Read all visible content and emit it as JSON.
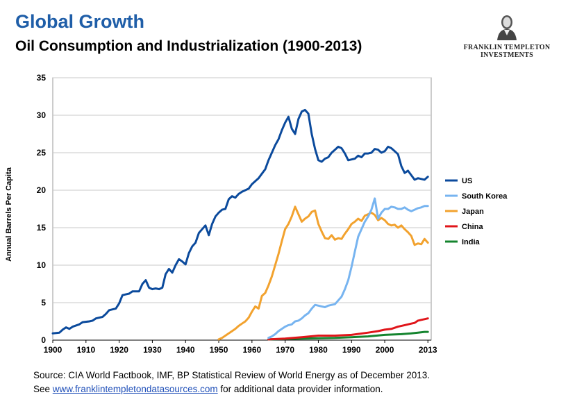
{
  "header": {
    "title": "Global Growth",
    "subtitle": "Oil Consumption and Industrialization (1900-2013)"
  },
  "logo": {
    "line1": "FRANKLIN TEMPLETON",
    "line2": "INVESTMENTS",
    "icon": "portrait-icon"
  },
  "footer": {
    "source": "Source: CIA World Factbook, IMF, BP Statistical  Review of World Energy as of December 2013.",
    "see_prefix": "See ",
    "link": "www.franklintempletondatasources.com",
    "see_suffix": " for additional data provider information."
  },
  "chart_data": {
    "type": "line",
    "title": "Oil Consumption and Industrialization (1900-2013)",
    "ylabel": "Annual Barrels Per Capita",
    "xlabel": "",
    "xlim": [
      1900,
      2014
    ],
    "ylim": [
      0,
      35
    ],
    "x_ticks": [
      "1900",
      "1910",
      "1920",
      "1930",
      "1940",
      "1950",
      "1960",
      "1970",
      "1980",
      "1990",
      "2000",
      "2013"
    ],
    "x_tick_values": [
      1900,
      1910,
      1920,
      1930,
      1940,
      1950,
      1960,
      1970,
      1980,
      1990,
      2000,
      2013
    ],
    "y_ticks": [
      0,
      5,
      10,
      15,
      20,
      25,
      30,
      35
    ],
    "grid": "horizontal",
    "legend_position": "right",
    "series": [
      {
        "name": "US",
        "color": "#0b4a9c",
        "points": [
          [
            1900,
            0.9
          ],
          [
            1902,
            1.0
          ],
          [
            1903,
            1.4
          ],
          [
            1904,
            1.7
          ],
          [
            1905,
            1.5
          ],
          [
            1906,
            1.8
          ],
          [
            1908,
            2.1
          ],
          [
            1909,
            2.4
          ],
          [
            1911,
            2.5
          ],
          [
            1912,
            2.6
          ],
          [
            1913,
            2.9
          ],
          [
            1915,
            3.1
          ],
          [
            1916,
            3.5
          ],
          [
            1917,
            4.0
          ],
          [
            1919,
            4.2
          ],
          [
            1920,
            4.9
          ],
          [
            1921,
            6.0
          ],
          [
            1922,
            6.1
          ],
          [
            1923,
            6.2
          ],
          [
            1924,
            6.5
          ],
          [
            1926,
            6.5
          ],
          [
            1927,
            7.5
          ],
          [
            1928,
            8.0
          ],
          [
            1929,
            7.0
          ],
          [
            1930,
            6.8
          ],
          [
            1931,
            6.9
          ],
          [
            1932,
            6.8
          ],
          [
            1933,
            7.0
          ],
          [
            1934,
            8.8
          ],
          [
            1935,
            9.5
          ],
          [
            1936,
            9.0
          ],
          [
            1937,
            10.0
          ],
          [
            1938,
            10.8
          ],
          [
            1939,
            10.5
          ],
          [
            1940,
            10.1
          ],
          [
            1941,
            11.6
          ],
          [
            1942,
            12.5
          ],
          [
            1943,
            13.0
          ],
          [
            1944,
            14.3
          ],
          [
            1945,
            14.8
          ],
          [
            1946,
            15.3
          ],
          [
            1947,
            14.0
          ],
          [
            1948,
            15.5
          ],
          [
            1949,
            16.5
          ],
          [
            1950,
            17.0
          ],
          [
            1951,
            17.4
          ],
          [
            1952,
            17.5
          ],
          [
            1953,
            18.8
          ],
          [
            1954,
            19.2
          ],
          [
            1955,
            19.0
          ],
          [
            1956,
            19.5
          ],
          [
            1957,
            19.8
          ],
          [
            1958,
            20.0
          ],
          [
            1959,
            20.2
          ],
          [
            1960,
            20.8
          ],
          [
            1961,
            21.2
          ],
          [
            1962,
            21.6
          ],
          [
            1963,
            22.2
          ],
          [
            1964,
            22.8
          ],
          [
            1965,
            24.0
          ],
          [
            1966,
            25.0
          ],
          [
            1967,
            26.0
          ],
          [
            1968,
            26.8
          ],
          [
            1969,
            28.0
          ],
          [
            1970,
            29.0
          ],
          [
            1971,
            29.8
          ],
          [
            1972,
            28.2
          ],
          [
            1973,
            27.5
          ],
          [
            1974,
            29.5
          ],
          [
            1975,
            30.5
          ],
          [
            1976,
            30.7
          ],
          [
            1977,
            30.2
          ],
          [
            1978,
            27.5
          ],
          [
            1979,
            25.5
          ],
          [
            1980,
            24.0
          ],
          [
            1981,
            23.8
          ],
          [
            1982,
            24.2
          ],
          [
            1983,
            24.4
          ],
          [
            1984,
            25.0
          ],
          [
            1985,
            25.4
          ],
          [
            1986,
            25.8
          ],
          [
            1987,
            25.6
          ],
          [
            1988,
            24.9
          ],
          [
            1989,
            24.0
          ],
          [
            1990,
            24.1
          ],
          [
            1991,
            24.2
          ],
          [
            1992,
            24.6
          ],
          [
            1993,
            24.4
          ],
          [
            1994,
            24.9
          ],
          [
            1995,
            24.9
          ],
          [
            1996,
            25.0
          ],
          [
            1997,
            25.5
          ],
          [
            1998,
            25.4
          ],
          [
            1999,
            25.0
          ],
          [
            2000,
            25.2
          ],
          [
            2001,
            25.8
          ],
          [
            2002,
            25.6
          ],
          [
            2003,
            25.2
          ],
          [
            2004,
            24.8
          ],
          [
            2005,
            23.2
          ],
          [
            2006,
            22.3
          ],
          [
            2007,
            22.6
          ],
          [
            2008,
            22.0
          ],
          [
            2009,
            21.4
          ],
          [
            2010,
            21.6
          ],
          [
            2011,
            21.5
          ],
          [
            2012,
            21.4
          ],
          [
            2013,
            21.8
          ]
        ]
      },
      {
        "name": "South Korea",
        "color": "#77b4f0",
        "points": [
          [
            1965,
            0.3
          ],
          [
            1966,
            0.5
          ],
          [
            1967,
            0.8
          ],
          [
            1968,
            1.2
          ],
          [
            1969,
            1.5
          ],
          [
            1970,
            1.8
          ],
          [
            1971,
            2.0
          ],
          [
            1972,
            2.1
          ],
          [
            1973,
            2.5
          ],
          [
            1974,
            2.6
          ],
          [
            1975,
            2.9
          ],
          [
            1976,
            3.3
          ],
          [
            1977,
            3.6
          ],
          [
            1978,
            4.2
          ],
          [
            1979,
            4.7
          ],
          [
            1980,
            4.6
          ],
          [
            1981,
            4.5
          ],
          [
            1982,
            4.4
          ],
          [
            1983,
            4.6
          ],
          [
            1984,
            4.7
          ],
          [
            1985,
            4.8
          ],
          [
            1986,
            5.3
          ],
          [
            1987,
            5.8
          ],
          [
            1988,
            6.8
          ],
          [
            1989,
            8.0
          ],
          [
            1990,
            9.8
          ],
          [
            1991,
            11.8
          ],
          [
            1992,
            13.8
          ],
          [
            1993,
            14.8
          ],
          [
            1994,
            15.8
          ],
          [
            1995,
            16.5
          ],
          [
            1996,
            17.4
          ],
          [
            1997,
            18.9
          ],
          [
            1998,
            16.2
          ],
          [
            1999,
            17.0
          ],
          [
            2000,
            17.5
          ],
          [
            2001,
            17.5
          ],
          [
            2002,
            17.8
          ],
          [
            2003,
            17.7
          ],
          [
            2004,
            17.5
          ],
          [
            2005,
            17.5
          ],
          [
            2006,
            17.7
          ],
          [
            2007,
            17.4
          ],
          [
            2008,
            17.2
          ],
          [
            2009,
            17.4
          ],
          [
            2010,
            17.6
          ],
          [
            2011,
            17.7
          ],
          [
            2012,
            17.9
          ],
          [
            2013,
            17.9
          ]
        ]
      },
      {
        "name": "Japan",
        "color": "#f2a22e",
        "points": [
          [
            1950,
            0.1
          ],
          [
            1951,
            0.3
          ],
          [
            1952,
            0.6
          ],
          [
            1953,
            0.9
          ],
          [
            1954,
            1.2
          ],
          [
            1955,
            1.5
          ],
          [
            1956,
            1.9
          ],
          [
            1957,
            2.2
          ],
          [
            1958,
            2.5
          ],
          [
            1959,
            3.0
          ],
          [
            1960,
            3.8
          ],
          [
            1961,
            4.5
          ],
          [
            1962,
            4.2
          ],
          [
            1963,
            5.9
          ],
          [
            1964,
            6.3
          ],
          [
            1965,
            7.3
          ],
          [
            1966,
            8.5
          ],
          [
            1967,
            10.0
          ],
          [
            1968,
            11.5
          ],
          [
            1969,
            13.2
          ],
          [
            1970,
            14.8
          ],
          [
            1971,
            15.5
          ],
          [
            1972,
            16.5
          ],
          [
            1973,
            17.8
          ],
          [
            1974,
            16.8
          ],
          [
            1975,
            15.8
          ],
          [
            1976,
            16.2
          ],
          [
            1977,
            16.5
          ],
          [
            1978,
            17.1
          ],
          [
            1979,
            17.3
          ],
          [
            1980,
            15.5
          ],
          [
            1981,
            14.5
          ],
          [
            1982,
            13.6
          ],
          [
            1983,
            13.5
          ],
          [
            1984,
            14.0
          ],
          [
            1985,
            13.4
          ],
          [
            1986,
            13.6
          ],
          [
            1987,
            13.5
          ],
          [
            1988,
            14.2
          ],
          [
            1989,
            14.8
          ],
          [
            1990,
            15.5
          ],
          [
            1991,
            15.8
          ],
          [
            1992,
            16.2
          ],
          [
            1993,
            15.9
          ],
          [
            1994,
            16.6
          ],
          [
            1995,
            16.8
          ],
          [
            1996,
            17.0
          ],
          [
            1997,
            16.7
          ],
          [
            1998,
            16.0
          ],
          [
            1999,
            16.3
          ],
          [
            2000,
            16.0
          ],
          [
            2001,
            15.5
          ],
          [
            2002,
            15.3
          ],
          [
            2003,
            15.4
          ],
          [
            2004,
            15.0
          ],
          [
            2005,
            15.3
          ],
          [
            2006,
            14.8
          ],
          [
            2007,
            14.4
          ],
          [
            2008,
            13.9
          ],
          [
            2009,
            12.7
          ],
          [
            2010,
            12.9
          ],
          [
            2011,
            12.8
          ],
          [
            2012,
            13.5
          ],
          [
            2013,
            13.0
          ]
        ]
      },
      {
        "name": "China",
        "color": "#e0151a",
        "points": [
          [
            1965,
            0.1
          ],
          [
            1970,
            0.2
          ],
          [
            1975,
            0.4
          ],
          [
            1980,
            0.6
          ],
          [
            1985,
            0.6
          ],
          [
            1990,
            0.7
          ],
          [
            1995,
            1.0
          ],
          [
            1998,
            1.2
          ],
          [
            2000,
            1.4
          ],
          [
            2002,
            1.5
          ],
          [
            2004,
            1.8
          ],
          [
            2006,
            2.0
          ],
          [
            2008,
            2.2
          ],
          [
            2009,
            2.3
          ],
          [
            2010,
            2.6
          ],
          [
            2011,
            2.7
          ],
          [
            2012,
            2.8
          ],
          [
            2013,
            2.9
          ]
        ]
      },
      {
        "name": "India",
        "color": "#14842e",
        "points": [
          [
            1965,
            0.1
          ],
          [
            1970,
            0.15
          ],
          [
            1975,
            0.2
          ],
          [
            1980,
            0.25
          ],
          [
            1985,
            0.3
          ],
          [
            1990,
            0.4
          ],
          [
            1995,
            0.5
          ],
          [
            2000,
            0.7
          ],
          [
            2005,
            0.8
          ],
          [
            2008,
            0.9
          ],
          [
            2010,
            1.0
          ],
          [
            2012,
            1.1
          ],
          [
            2013,
            1.1
          ]
        ]
      }
    ]
  }
}
